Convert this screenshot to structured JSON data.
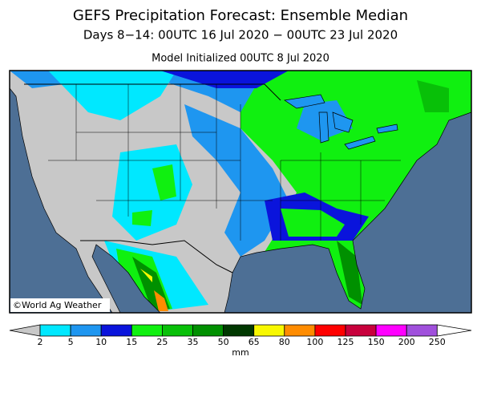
{
  "header": {
    "title": "GEFS Precipitation Forecast: Ensemble Median",
    "subtitle": "Days 8−14: 00UTC 16 Jul 2020 − 00UTC 23 Jul 2020",
    "initialized": "Model Initialized 00UTC 8 Jul 2020"
  },
  "map": {
    "credit": "©World Ag Weather"
  },
  "colorbar": {
    "ticks": [
      2,
      5,
      10,
      15,
      25,
      35,
      50,
      65,
      80,
      100,
      125,
      150,
      200,
      250
    ],
    "colors": [
      "#00e8ff",
      "#1e96f0",
      "#0a14dc",
      "#10f010",
      "#08c008",
      "#009000",
      "#003800",
      "#f8f800",
      "#ff8c00",
      "#ff0000",
      "#c8003c",
      "#ff00ff",
      "#a050dc"
    ],
    "under_color": "#c8c8c8",
    "over_color": "#ffffff",
    "unit": "mm"
  }
}
